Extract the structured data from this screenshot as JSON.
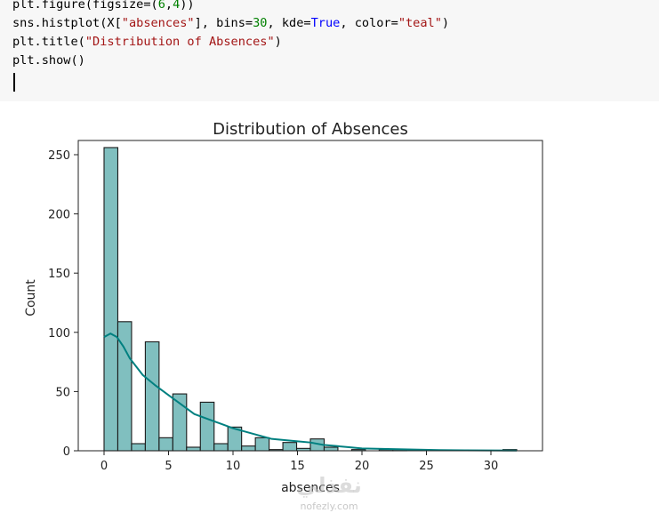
{
  "cell": {
    "code_lines": [
      [
        {
          "t": "plt.figure(figsize=",
          "c": ""
        },
        {
          "t": "(",
          "c": "par"
        },
        {
          "t": "6",
          "c": "num"
        },
        {
          "t": ",",
          "c": ""
        },
        {
          "t": "4",
          "c": "num"
        },
        {
          "t": "))",
          "c": "par"
        }
      ],
      [
        {
          "t": "sns.histplot(X[",
          "c": ""
        },
        {
          "t": "\"absences\"",
          "c": "str"
        },
        {
          "t": "], bins=",
          "c": ""
        },
        {
          "t": "30",
          "c": "num"
        },
        {
          "t": ", kde=",
          "c": ""
        },
        {
          "t": "True",
          "c": "kw"
        },
        {
          "t": ", color=",
          "c": ""
        },
        {
          "t": "\"teal\"",
          "c": "str"
        },
        {
          "t": ")",
          "c": ""
        }
      ],
      [
        {
          "t": "plt.title(",
          "c": ""
        },
        {
          "t": "\"Distribution of Absences\"",
          "c": "str"
        },
        {
          "t": ")",
          "c": ""
        }
      ],
      [
        {
          "t": "plt.show",
          "c": ""
        },
        {
          "t": "()",
          "c": "par"
        }
      ]
    ]
  },
  "watermark": {
    "arabic": "نفذلي",
    "site": "nofezly.com"
  },
  "chart_data": {
    "type": "bar",
    "title": "Distribution of Absences",
    "xlabel": "absences",
    "ylabel": "Count",
    "xlim": [
      -2,
      34
    ],
    "ylim": [
      0,
      262
    ],
    "xticks": [
      0,
      5,
      10,
      15,
      20,
      25,
      30
    ],
    "yticks": [
      0,
      50,
      100,
      150,
      200,
      250
    ],
    "bar_color": "#80bfbf",
    "bar_edge": "#1a1a1a",
    "kde_color": "#008080",
    "bin_edges": [
      0.0,
      1.0667,
      2.1333,
      3.2,
      4.2667,
      5.3333,
      6.4,
      7.4667,
      8.5333,
      9.6,
      10.6667,
      11.7333,
      12.8,
      13.8667,
      14.9333,
      16.0,
      17.0667,
      18.1333,
      19.2,
      20.2667,
      21.3333,
      22.4,
      23.4667,
      24.5333,
      25.6,
      26.6667,
      27.7333,
      28.8,
      29.8667,
      30.9333,
      32.0
    ],
    "counts": [
      256,
      109,
      6,
      92,
      11,
      48,
      3,
      41,
      6,
      20,
      4,
      11,
      1,
      7,
      2,
      10,
      3,
      0,
      1,
      0,
      1,
      1,
      0,
      0,
      0,
      0,
      0,
      0,
      0,
      1
    ],
    "kde": {
      "x": [
        0,
        0.5,
        1,
        1.5,
        2,
        3,
        4,
        5,
        6,
        7,
        8,
        9,
        10,
        11,
        12,
        13,
        14,
        15,
        16,
        17,
        18,
        19,
        20,
        22,
        24,
        26,
        28,
        30,
        32
      ],
      "y": [
        96,
        99,
        96,
        88,
        78,
        64,
        55,
        47,
        39,
        31,
        27,
        23,
        19,
        16,
        13,
        10,
        9,
        8,
        7,
        5,
        4,
        3,
        2,
        1.5,
        1,
        0.6,
        0.4,
        0.3,
        0.2
      ]
    }
  }
}
